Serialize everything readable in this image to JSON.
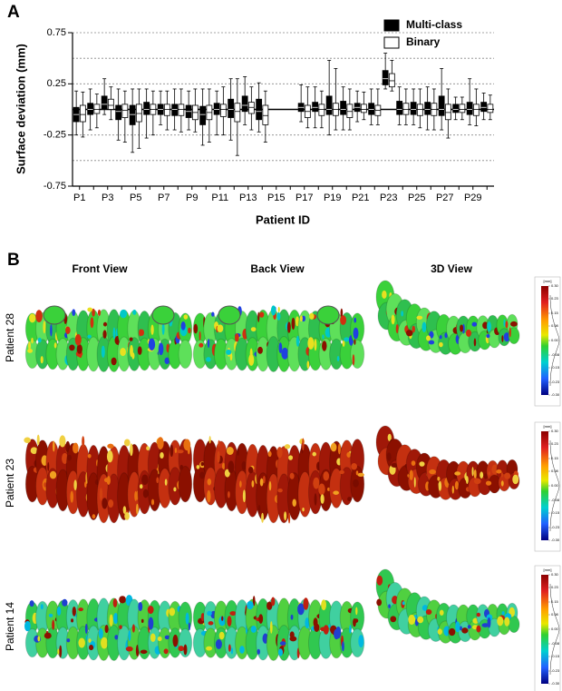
{
  "chart_data": {
    "type": "boxplot",
    "panel_label": "A",
    "ylabel": "Surface deviation (mm)",
    "xlabel": "Patient ID",
    "categories": [
      "P1",
      null,
      "P3",
      null,
      "P5",
      null,
      "P7",
      null,
      "P9",
      null,
      "P11",
      null,
      "P13",
      null,
      "P15",
      null,
      "P17",
      null,
      "P19",
      null,
      "P21",
      null,
      "P23",
      null,
      "P25",
      null,
      "P27",
      null,
      "P29",
      null
    ],
    "ylim": [
      -0.75,
      0.75
    ],
    "yticks": [
      -0.75,
      -0.25,
      0.25,
      0.75
    ],
    "grid_lines": [
      0.75,
      0.5,
      0.25,
      -0.25,
      -0.5
    ],
    "reference_line": 0,
    "legend": "top-right",
    "series": [
      {
        "name": "Multi-class",
        "color": "#000000",
        "values": [
          {
            "min": -0.25,
            "q1": -0.12,
            "median": -0.05,
            "q3": 0.02,
            "max": 0.18
          },
          {
            "min": -0.2,
            "q1": -0.05,
            "median": 0.0,
            "q3": 0.06,
            "max": 0.2
          },
          {
            "min": -0.05,
            "q1": 0.0,
            "median": 0.05,
            "q3": 0.13,
            "max": 0.3
          },
          {
            "min": -0.3,
            "q1": -0.1,
            "median": -0.02,
            "q3": 0.04,
            "max": 0.2
          },
          {
            "min": -0.42,
            "q1": -0.15,
            "median": -0.05,
            "q3": 0.04,
            "max": 0.2
          },
          {
            "min": -0.28,
            "q1": -0.05,
            "median": 0.0,
            "q3": 0.07,
            "max": 0.2
          },
          {
            "min": -0.15,
            "q1": -0.05,
            "median": 0.0,
            "q3": 0.05,
            "max": 0.18
          },
          {
            "min": -0.2,
            "q1": -0.06,
            "median": 0.0,
            "q3": 0.05,
            "max": 0.2
          },
          {
            "min": -0.2,
            "q1": -0.08,
            "median": -0.02,
            "q3": 0.04,
            "max": 0.18
          },
          {
            "min": -0.35,
            "q1": -0.15,
            "median": -0.05,
            "q3": 0.03,
            "max": 0.2
          },
          {
            "min": -0.25,
            "q1": -0.05,
            "median": 0.0,
            "q3": 0.06,
            "max": 0.18
          },
          {
            "min": -0.3,
            "q1": -0.08,
            "median": 0.0,
            "q3": 0.1,
            "max": 0.3
          },
          {
            "min": -0.15,
            "q1": -0.02,
            "median": 0.04,
            "q3": 0.13,
            "max": 0.32
          },
          {
            "min": -0.22,
            "q1": -0.1,
            "median": -0.02,
            "q3": 0.1,
            "max": 0.26
          },
          null,
          null,
          {
            "min": -0.12,
            "q1": -0.02,
            "median": 0.02,
            "q3": 0.06,
            "max": 0.24
          },
          {
            "min": -0.18,
            "q1": -0.02,
            "median": 0.02,
            "q3": 0.07,
            "max": 0.22
          },
          {
            "min": -0.25,
            "q1": -0.05,
            "median": 0.0,
            "q3": 0.13,
            "max": 0.48
          },
          {
            "min": -0.2,
            "q1": -0.05,
            "median": 0.0,
            "q3": 0.08,
            "max": 0.22
          },
          {
            "min": -0.12,
            "q1": -0.02,
            "median": 0.02,
            "q3": 0.06,
            "max": 0.18
          },
          {
            "min": -0.15,
            "q1": -0.05,
            "median": 0.0,
            "q3": 0.06,
            "max": 0.2
          },
          {
            "min": 0.2,
            "q1": 0.24,
            "median": 0.3,
            "q3": 0.38,
            "max": 0.55
          },
          {
            "min": -0.15,
            "q1": -0.05,
            "median": 0.0,
            "q3": 0.08,
            "max": 0.22
          },
          {
            "min": -0.15,
            "q1": -0.05,
            "median": 0.0,
            "q3": 0.07,
            "max": 0.2
          },
          {
            "min": -0.2,
            "q1": -0.05,
            "median": 0.0,
            "q3": 0.07,
            "max": 0.22
          },
          {
            "min": -0.2,
            "q1": -0.06,
            "median": 0.0,
            "q3": 0.13,
            "max": 0.4
          },
          {
            "min": -0.1,
            "q1": -0.03,
            "median": 0.0,
            "q3": 0.05,
            "max": 0.12
          },
          {
            "min": -0.15,
            "q1": -0.05,
            "median": 0.0,
            "q3": 0.07,
            "max": 0.3
          },
          {
            "min": -0.1,
            "q1": -0.02,
            "median": 0.02,
            "q3": 0.07,
            "max": 0.16
          }
        ]
      },
      {
        "name": "Binary",
        "color": "#ffffff",
        "values": [
          {
            "min": -0.27,
            "q1": -0.12,
            "median": -0.05,
            "q3": 0.04,
            "max": 0.17
          },
          {
            "min": -0.18,
            "q1": -0.04,
            "median": 0.0,
            "q3": 0.05,
            "max": 0.15
          },
          {
            "min": -0.1,
            "q1": 0.0,
            "median": 0.04,
            "q3": 0.1,
            "max": 0.22
          },
          {
            "min": -0.32,
            "q1": -0.08,
            "median": -0.01,
            "q3": 0.05,
            "max": 0.18
          },
          {
            "min": -0.38,
            "q1": -0.12,
            "median": -0.04,
            "q3": 0.05,
            "max": 0.2
          },
          {
            "min": -0.25,
            "q1": -0.05,
            "median": 0.0,
            "q3": 0.05,
            "max": 0.18
          },
          {
            "min": -0.2,
            "q1": -0.06,
            "median": 0.0,
            "q3": 0.05,
            "max": 0.18
          },
          {
            "min": -0.22,
            "q1": -0.06,
            "median": 0.0,
            "q3": 0.05,
            "max": 0.2
          },
          {
            "min": -0.22,
            "q1": -0.1,
            "median": -0.03,
            "q3": 0.04,
            "max": 0.2
          },
          {
            "min": -0.32,
            "q1": -0.1,
            "median": -0.03,
            "q3": 0.04,
            "max": 0.2
          },
          {
            "min": -0.25,
            "q1": -0.07,
            "median": 0.0,
            "q3": 0.05,
            "max": 0.22
          },
          {
            "min": -0.45,
            "q1": -0.12,
            "median": -0.02,
            "q3": 0.06,
            "max": 0.3
          },
          {
            "min": -0.2,
            "q1": -0.04,
            "median": 0.02,
            "q3": 0.07,
            "max": 0.22
          },
          {
            "min": -0.32,
            "q1": -0.15,
            "median": -0.06,
            "q3": 0.04,
            "max": 0.18
          },
          null,
          null,
          {
            "min": -0.18,
            "q1": -0.08,
            "median": -0.02,
            "q3": 0.04,
            "max": 0.22
          },
          {
            "min": -0.18,
            "q1": -0.06,
            "median": 0.0,
            "q3": 0.05,
            "max": 0.18
          },
          {
            "min": -0.2,
            "q1": -0.06,
            "median": 0.0,
            "q3": 0.06,
            "max": 0.4
          },
          {
            "min": -0.2,
            "q1": -0.08,
            "median": -0.02,
            "q3": 0.05,
            "max": 0.2
          },
          {
            "min": -0.1,
            "q1": -0.03,
            "median": 0.0,
            "q3": 0.05,
            "max": 0.17
          },
          {
            "min": -0.15,
            "q1": -0.06,
            "median": -0.01,
            "q3": 0.04,
            "max": 0.2
          },
          {
            "min": 0.18,
            "q1": 0.22,
            "median": 0.28,
            "q3": 0.35,
            "max": 0.48
          },
          {
            "min": -0.15,
            "q1": -0.05,
            "median": 0.0,
            "q3": 0.06,
            "max": 0.2
          },
          {
            "min": -0.18,
            "q1": -0.06,
            "median": 0.0,
            "q3": 0.05,
            "max": 0.2
          },
          {
            "min": -0.2,
            "q1": -0.06,
            "median": 0.0,
            "q3": 0.06,
            "max": 0.2
          },
          {
            "min": -0.28,
            "q1": -0.1,
            "median": -0.03,
            "q3": 0.05,
            "max": 0.2
          },
          {
            "min": -0.1,
            "q1": -0.03,
            "median": 0.0,
            "q3": 0.05,
            "max": 0.12
          },
          {
            "min": -0.16,
            "q1": -0.06,
            "median": 0.0,
            "q3": 0.05,
            "max": 0.2
          },
          {
            "min": -0.1,
            "q1": -0.03,
            "median": 0.0,
            "q3": 0.05,
            "max": 0.14
          }
        ]
      }
    ]
  },
  "renders": {
    "panel_label": "B",
    "columns": [
      "Front View",
      "Back View",
      "3D View"
    ],
    "rows": [
      "Patient 28",
      "Patient 23",
      "Patient 14"
    ],
    "colorbar": {
      "unit": "[mm]",
      "ticks": [
        {
          "value": 0.3,
          "label": "0.30"
        },
        {
          "value": 0.23,
          "label": "0.23"
        },
        {
          "value": 0.15,
          "label": "0.15"
        },
        {
          "value": 0.08,
          "label": "0.08"
        },
        {
          "value": 0,
          "label": "0.00"
        },
        {
          "value": -0.08,
          "label": "-0.08"
        },
        {
          "value": -0.15,
          "label": "-0.15"
        },
        {
          "value": -0.23,
          "label": "-0.23"
        },
        {
          "value": -0.3,
          "label": "-0.30"
        }
      ]
    }
  }
}
